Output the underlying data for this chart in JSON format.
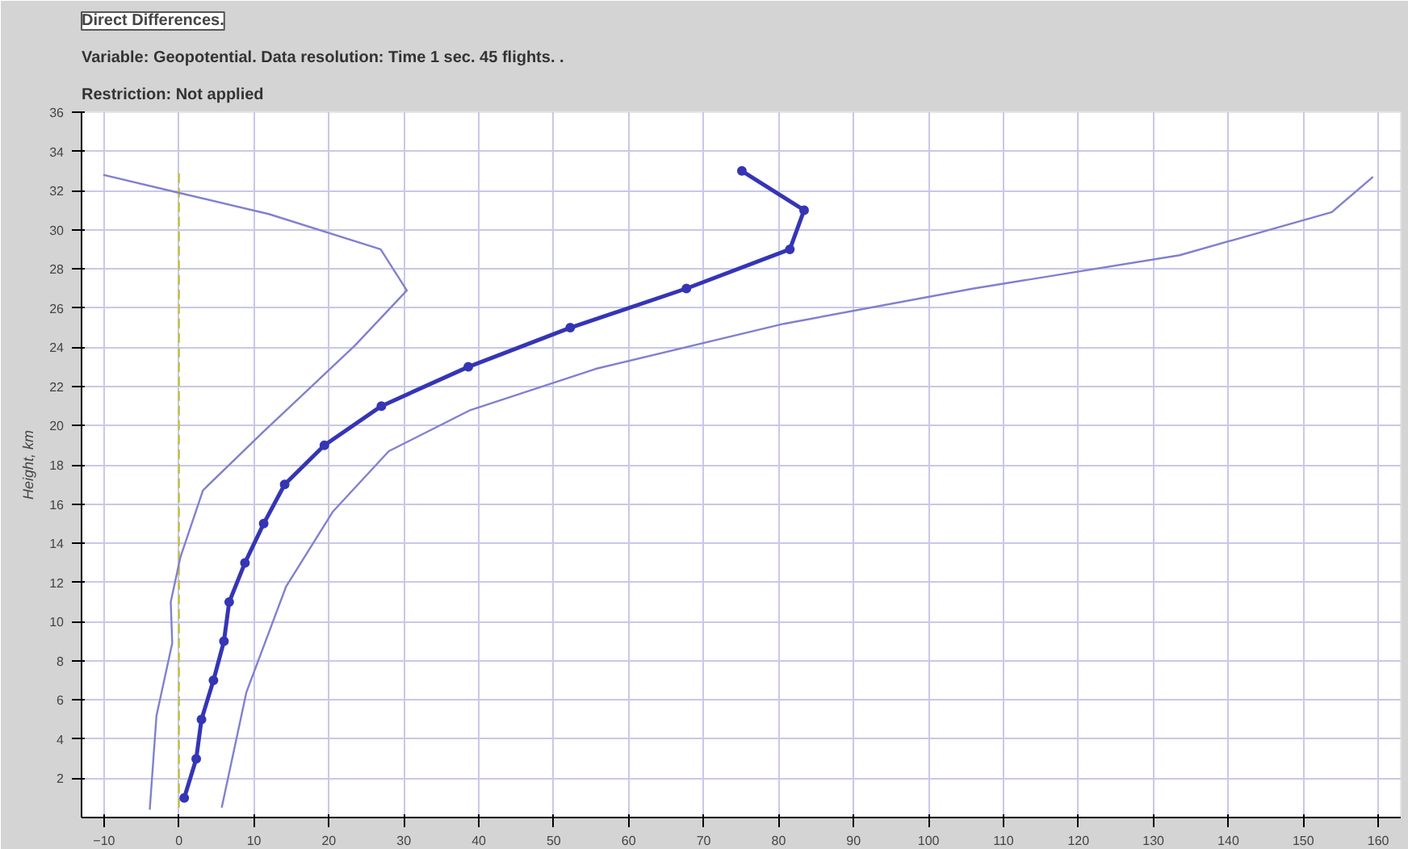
{
  "chart_data": {
    "type": "line",
    "title": "Direct Differences.",
    "subtitle": "Variable: Geopotential. Data resolution: Time 1 sec. 45 flights.  .",
    "annotations": [
      "Restriction: Not applied"
    ],
    "ylabel": "Height, km",
    "xlim": [
      -13,
      163
    ],
    "ylim": [
      0,
      36
    ],
    "xticks": [
      -10,
      0,
      10,
      20,
      30,
      40,
      50,
      60,
      70,
      80,
      90,
      100,
      110,
      120,
      130,
      140,
      150,
      160
    ],
    "yticks": [
      2,
      4,
      6,
      8,
      10,
      12,
      14,
      16,
      18,
      20,
      22,
      24,
      26,
      28,
      30,
      32,
      34,
      36
    ],
    "grid": true,
    "series": [
      {
        "color": "#c8c040",
        "line_style": "dashed",
        "marker": "none",
        "x": [
          0,
          0
        ],
        "values": [
          0.5,
          33
        ]
      },
      {
        "color": "#8080d0",
        "marker": "none",
        "x": [
          -3.9,
          -3.0,
          -0.9,
          -1.1,
          0.2,
          3.2,
          11.3,
          23.5,
          30.4,
          26.9,
          12,
          -0.2,
          -10.1
        ],
        "values": [
          0.4,
          5.2,
          8.9,
          11,
          13.3,
          16.7,
          19.7,
          24.1,
          26.9,
          29,
          30.8,
          31.9,
          32.8
        ]
      },
      {
        "color": "#8080d0",
        "marker": "none",
        "x": [
          5.7,
          9,
          14.3,
          20.5,
          28,
          38.9,
          55.6,
          80.7,
          106,
          133.5,
          153.8,
          159.3
        ],
        "values": [
          0.5,
          6.4,
          11.8,
          15.6,
          18.7,
          20.8,
          22.9,
          25.2,
          27,
          28.7,
          30.9,
          32.7
        ]
      },
      {
        "color": "#3535b5",
        "marker": "circle",
        "x": [
          0.7,
          2.3,
          3.0,
          4.6,
          6.0,
          6.7,
          8.8,
          11.3,
          14.1,
          19.4,
          27.0,
          38.6,
          52.2,
          67.7,
          81.5,
          83.4,
          75.1
        ],
        "values": [
          1,
          3,
          5,
          7,
          9,
          11,
          13,
          15,
          17,
          19,
          21,
          23,
          25,
          27,
          29,
          31,
          33
        ]
      }
    ]
  }
}
